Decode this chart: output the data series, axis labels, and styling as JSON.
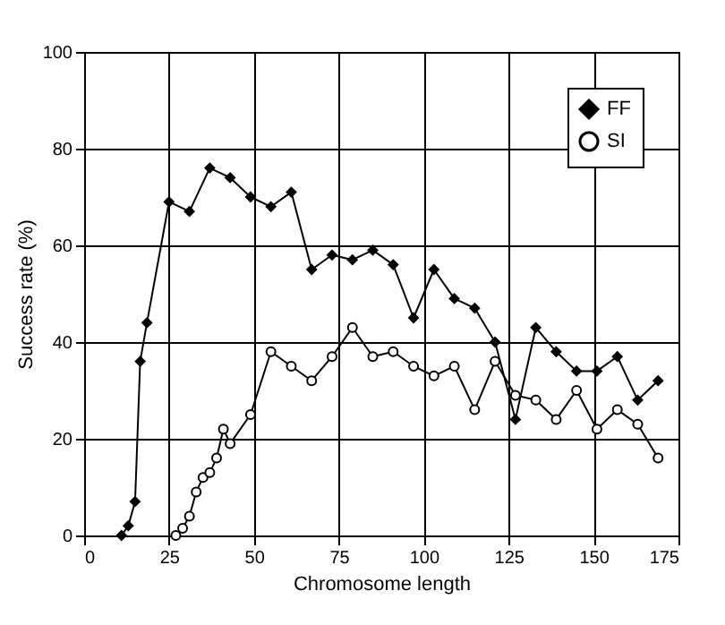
{
  "chart_data": {
    "type": "line",
    "xlabel": "Chromosome length",
    "ylabel": "Success rate (%)",
    "xlim": [
      0,
      175
    ],
    "xticks": [
      0,
      25,
      50,
      75,
      100,
      125,
      150,
      175
    ],
    "ylim": [
      0,
      100
    ],
    "yticks": [
      0,
      20,
      40,
      60,
      80,
      100
    ],
    "grid": true,
    "legend": "top right",
    "series": [
      {
        "name": "FF",
        "color": "#000000",
        "marker": "diamond",
        "x": [
          11,
          13,
          15,
          16.5,
          18.5,
          25,
          31,
          37,
          43,
          49,
          55,
          61,
          67,
          73,
          79,
          85,
          91,
          97,
          103,
          109,
          115,
          121,
          127,
          133,
          139,
          145,
          151,
          157,
          163,
          169
        ],
        "values": [
          0,
          2,
          7,
          36,
          44,
          69,
          67,
          76,
          74,
          70,
          68,
          71,
          55,
          58,
          57,
          59,
          56,
          45,
          55,
          49,
          47,
          40,
          24,
          43,
          38,
          34,
          34,
          37,
          28,
          32
        ]
      },
      {
        "name": "SI",
        "color": "#000000",
        "marker": "circle",
        "x": [
          27,
          29,
          31,
          33,
          35,
          37,
          39,
          41,
          43,
          49,
          55,
          61,
          67,
          73,
          79,
          85,
          91,
          97,
          103,
          109,
          115,
          121,
          127,
          133,
          139,
          145,
          151,
          157,
          163,
          169
        ],
        "values": [
          0,
          1.5,
          4,
          9,
          12,
          13,
          16,
          22,
          19,
          25,
          38,
          35,
          32,
          37,
          43,
          37,
          38,
          35,
          33,
          35,
          26,
          36,
          29,
          28,
          24,
          30,
          22,
          26,
          23,
          16
        ]
      }
    ]
  }
}
